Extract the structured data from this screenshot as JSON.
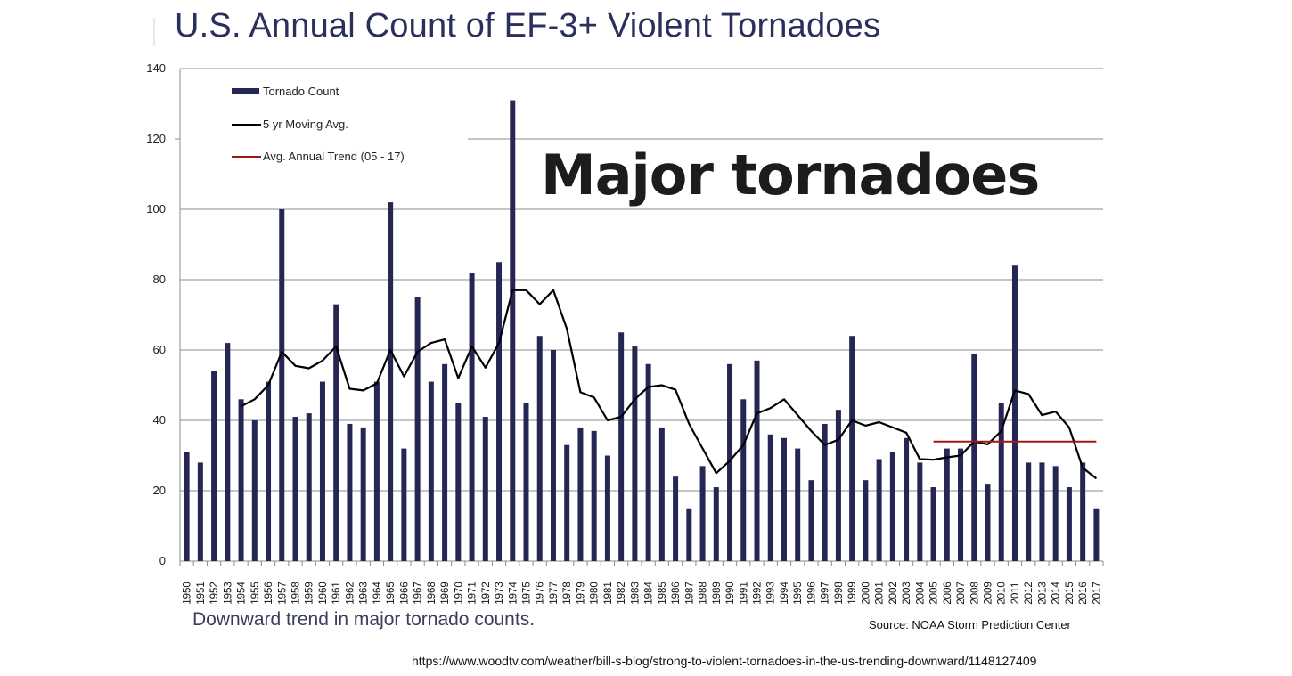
{
  "chart_data": {
    "type": "bar",
    "title": "U.S. Annual Count of EF-3+ Violent Tornadoes",
    "overlay_label": "Major tornadoes",
    "subtitle": "Downward trend in major tornado counts.",
    "source": "Source: NOAA  Storm Prediction Center",
    "url": "https://www.woodtv.com/weather/bill-s-blog/strong-to-violent-tornadoes-in-the-us-trending-downward/1148127409",
    "xlabel": "",
    "ylabel": "",
    "ylim": [
      0,
      140
    ],
    "yticks": [
      0,
      20,
      40,
      60,
      80,
      100,
      120,
      140
    ],
    "grid": true,
    "legend_position": "top-left",
    "colors": {
      "bars": "#262655",
      "moving_avg": "#000000",
      "trend": "#a01818",
      "grid": "#8c8c8c"
    },
    "categories": [
      "1950",
      "1951",
      "1952",
      "1953",
      "1954",
      "1955",
      "1956",
      "1957",
      "1958",
      "1959",
      "1960",
      "1961",
      "1962",
      "1963",
      "1964",
      "1965",
      "1966",
      "1967",
      "1968",
      "1969",
      "1970",
      "1971",
      "1972",
      "1973",
      "1974",
      "1975",
      "1976",
      "1977",
      "1978",
      "1979",
      "1980",
      "1981",
      "1982",
      "1983",
      "1984",
      "1985",
      "1986",
      "1987",
      "1988",
      "1989",
      "1990",
      "1991",
      "1992",
      "1993",
      "1994",
      "1995",
      "1996",
      "1997",
      "1998",
      "1999",
      "2000",
      "2001",
      "2002",
      "2003",
      "2004",
      "2005",
      "2006",
      "2007",
      "2008",
      "2009",
      "2010",
      "2011",
      "2012",
      "2013",
      "2014",
      "2015",
      "2016",
      "2017"
    ],
    "series": [
      {
        "name": "Tornado Count",
        "type": "bar",
        "values": [
          31,
          28,
          54,
          62,
          46,
          40,
          51,
          100,
          41,
          42,
          51,
          73,
          39,
          38,
          51,
          102,
          32,
          75,
          51,
          56,
          45,
          82,
          41,
          85,
          131,
          45,
          64,
          60,
          33,
          38,
          37,
          30,
          65,
          61,
          56,
          38,
          24,
          15,
          27,
          21,
          56,
          46,
          57,
          36,
          35,
          32,
          23,
          39,
          43,
          64,
          23,
          29,
          31,
          35,
          28,
          21,
          32,
          32,
          59,
          22,
          45,
          84,
          28,
          28,
          27,
          21,
          28,
          15
        ]
      },
      {
        "name": "5 yr Moving Avg.",
        "type": "line",
        "start_year": "1954",
        "values": [
          44,
          46,
          50,
          59.5,
          55.5,
          54.8,
          57,
          61,
          49,
          48.5,
          50.5,
          60,
          52.5,
          59.5,
          62,
          63,
          52,
          61,
          55,
          62,
          77,
          77,
          73,
          77,
          66,
          48,
          46.5,
          40,
          41,
          46,
          49.5,
          50,
          48.7,
          39,
          32,
          25,
          28.5,
          33,
          42,
          43.5,
          46,
          41.5,
          37,
          33,
          34.5,
          40,
          38.5,
          39.5,
          38,
          36.5,
          29,
          28.8,
          29.5,
          30,
          34,
          33.2,
          37,
          48.5,
          47.5,
          41.5,
          42.5,
          38,
          26.5,
          23.5
        ]
      },
      {
        "name": "Avg. Annual Trend (05 - 17)",
        "type": "line",
        "start_year": "2005",
        "end_year": "2017",
        "value": 34
      }
    ]
  }
}
